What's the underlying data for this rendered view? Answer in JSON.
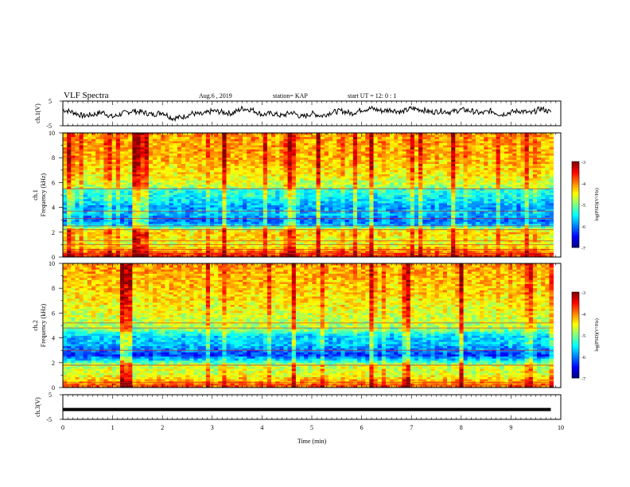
{
  "header": {
    "title": "VLF Spectra",
    "date": "Aug.6 , 2019",
    "station": "station= KAP",
    "start": "start UT = 12: 0 : 1"
  },
  "colors": {
    "colormap": [
      "#000080",
      "#0000ff",
      "#0080ff",
      "#00ffff",
      "#80ff80",
      "#ffff00",
      "#ff8000",
      "#ff0000",
      "#800000"
    ]
  },
  "chart_data": [
    {
      "id": "ch1-waveform",
      "type": "line",
      "ylabel": "ch.1(V)",
      "ylim": [
        -5,
        5
      ],
      "yticks": [
        "5",
        "-5"
      ],
      "xlim": [
        0,
        10
      ],
      "series": [
        {
          "color": "#000000",
          "x": [
            0,
            0.2,
            0.4,
            0.6,
            0.8,
            1.0,
            1.2,
            1.4,
            1.6,
            1.8,
            2.0,
            2.2,
            2.4,
            2.6,
            2.8,
            3.0,
            3.2,
            3.4,
            3.6,
            3.8,
            4.0,
            4.2,
            4.4,
            4.6,
            4.8,
            5.0,
            5.2,
            5.4,
            5.6,
            5.8,
            6.0,
            6.2,
            6.4,
            6.6,
            6.8,
            7.0,
            7.2,
            7.4,
            7.6,
            7.8,
            8.0,
            8.2,
            8.4,
            8.6,
            8.8,
            9.0,
            9.2,
            9.4,
            9.6,
            9.8
          ],
          "values": [
            1.5,
            0.5,
            -1.0,
            -0.5,
            0.5,
            -1.5,
            0.0,
            1.0,
            0.5,
            -0.5,
            0.5,
            -2.0,
            -1.5,
            0.0,
            -0.5,
            1.0,
            0.5,
            0.0,
            2.0,
            1.5,
            -0.5,
            0.0,
            -1.0,
            0.5,
            -1.5,
            0.0,
            -1.0,
            0.5,
            1.0,
            0.0,
            1.5,
            2.0,
            1.0,
            1.5,
            0.5,
            2.0,
            1.5,
            0.5,
            1.0,
            0.5,
            1.5,
            1.0,
            0.0,
            1.0,
            -0.5,
            0.5,
            1.0,
            0.0,
            2.0,
            0.5
          ]
        }
      ]
    },
    {
      "id": "ch1-spectrogram",
      "type": "heatmap",
      "ylabel": "ch.1",
      "ylabel2": "Frequency (kHz)",
      "ylim": [
        0,
        10
      ],
      "yticks": [
        "0",
        "2",
        "4",
        "6",
        "8",
        "10"
      ],
      "xlim": [
        0,
        10
      ],
      "colorbar": {
        "label": "log(PSD)(V²/Hz)",
        "range": [
          -7,
          -3
        ],
        "ticks": [
          "-3",
          "-4",
          "-5",
          "-6",
          "-7"
        ]
      },
      "freq_profile": [
        [
          0.0,
          -3.6
        ],
        [
          0.3,
          -3.8
        ],
        [
          0.6,
          -4.2
        ],
        [
          1.0,
          -4.6
        ],
        [
          1.5,
          -4.5
        ],
        [
          2.0,
          -4.3
        ],
        [
          2.3,
          -4.9
        ],
        [
          2.6,
          -5.8
        ],
        [
          3.0,
          -6.1
        ],
        [
          3.5,
          -5.7
        ],
        [
          4.0,
          -5.9
        ],
        [
          4.5,
          -5.6
        ],
        [
          5.0,
          -5.4
        ],
        [
          5.5,
          -5.3
        ],
        [
          5.6,
          -4.8
        ],
        [
          6.5,
          -4.5
        ],
        [
          8.0,
          -4.2
        ],
        [
          10.0,
          -4.1
        ]
      ],
      "lines_khz": [
        0.3,
        0.6,
        1.0,
        1.3,
        2.2,
        2.5,
        3.1,
        3.7,
        5.5
      ]
    },
    {
      "id": "ch2-spectrogram",
      "type": "heatmap",
      "ylabel": "ch.2",
      "ylabel2": "Frequency (kHz)",
      "ylim": [
        0,
        10
      ],
      "yticks": [
        "0",
        "2",
        "4",
        "6",
        "8",
        "10"
      ],
      "xlim": [
        0,
        10
      ],
      "colorbar": {
        "label": "log(PSD)(V²/Hz)",
        "range": [
          -7,
          -3
        ],
        "ticks": [
          "-3",
          "-4",
          "-5",
          "-6",
          "-7"
        ]
      },
      "freq_profile": [
        [
          0.0,
          -3.8
        ],
        [
          0.3,
          -4.0
        ],
        [
          1.0,
          -4.6
        ],
        [
          1.8,
          -4.7
        ],
        [
          2.2,
          -5.6
        ],
        [
          2.6,
          -6.3
        ],
        [
          3.0,
          -6.0
        ],
        [
          3.6,
          -5.7
        ],
        [
          4.2,
          -5.6
        ],
        [
          4.6,
          -5.0
        ],
        [
          5.0,
          -4.8
        ],
        [
          6.0,
          -4.6
        ],
        [
          8.0,
          -4.3
        ],
        [
          10.0,
          -4.1
        ]
      ],
      "lines_khz": [
        0.2,
        0.4,
        1.8,
        3.0,
        4.8,
        5.2
      ]
    },
    {
      "id": "ch3-waveform",
      "type": "line",
      "ylabel": "ch.3(V)",
      "ylim": [
        -5,
        5
      ],
      "yticks": [
        "5",
        "-5"
      ],
      "xlim": [
        0,
        10
      ],
      "xlabel": "Time (min)",
      "xticks": [
        "0",
        "1",
        "2",
        "3",
        "4",
        "5",
        "6",
        "7",
        "8",
        "9",
        "10"
      ],
      "series": [
        {
          "color": "#000000",
          "x": [
            0,
            9.8
          ],
          "values": [
            -1,
            -1
          ]
        }
      ]
    }
  ]
}
